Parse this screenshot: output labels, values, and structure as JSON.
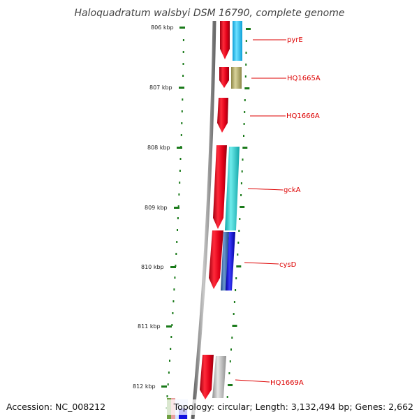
{
  "title": "Haloquadratum walsbyi DSM 16790, complete genome",
  "footer": {
    "accession": "Accession: NC_008212",
    "topology": "Topology: circular; Length: 3,132,494 bp; Genes: 2,662"
  },
  "ruler": {
    "ticks": [
      {
        "label": "806 kbp",
        "kbp": 806
      },
      {
        "label": "807 kbp",
        "kbp": 807
      },
      {
        "label": "808 kbp",
        "kbp": 808
      },
      {
        "label": "809 kbp",
        "kbp": 809
      },
      {
        "label": "810 kbp",
        "kbp": 810
      },
      {
        "label": "811 kbp",
        "kbp": 811
      },
      {
        "label": "812 kbp",
        "kbp": 812
      }
    ]
  },
  "gene_labels": [
    {
      "text": "pyrE",
      "color": "#dd0000"
    },
    {
      "text": "HQ1665A",
      "color": "#dd0000"
    },
    {
      "text": "HQ1666A",
      "color": "#dd0000"
    },
    {
      "text": "gckA",
      "color": "#dd0000"
    },
    {
      "text": "cysD",
      "color": "#dd0000"
    },
    {
      "text": "HQ1669A",
      "color": "#dd0000"
    }
  ],
  "colors": {
    "cds_track": "#e8001c",
    "backbone": "#8a8a8a",
    "tick_green": "#1a7a1a",
    "label_red": "#dd0000",
    "gene_colors": [
      "#19c2f0",
      "#b8b070",
      "#22c8cc",
      "#2d63a8",
      "#0a0ad8",
      "#b8b8b8"
    ]
  }
}
